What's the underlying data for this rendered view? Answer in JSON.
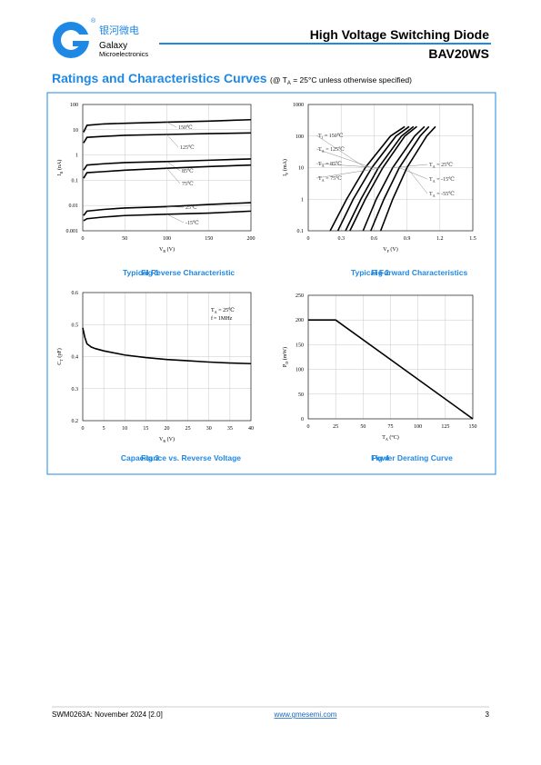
{
  "header": {
    "logo": {
      "cn": "银河微电",
      "name": "Galaxy",
      "sub": "Microelectronics",
      "reg": "®"
    },
    "title": "High Voltage Switching Diode",
    "part": "BAV20WS"
  },
  "section": {
    "title": "Ratings and Characteristics Curves",
    "note": "(@ TA = 25°C unless otherwise specified)"
  },
  "chart_data": [
    {
      "type": "line",
      "log_y": true,
      "grid": true,
      "xlabel": "VR (V)",
      "ylabel": "IR (nA)",
      "caption": {
        "label": "Fig 1",
        "text": "Typical Reverse Characteristic"
      },
      "xlim": [
        0,
        200
      ],
      "xticks": [
        0,
        50,
        100,
        150,
        200
      ],
      "ylim": [
        0.001,
        100
      ],
      "yticks": [
        0.001,
        0.01,
        0.1,
        1,
        10,
        100
      ],
      "x": [
        1,
        5,
        25,
        50,
        100,
        150,
        200
      ],
      "series": [
        {
          "name": "150℃",
          "color": "#000000",
          "values": [
            8,
            15,
            17,
            18,
            20,
            22,
            25
          ]
        },
        {
          "name": "125℃",
          "color": "#000000",
          "values": [
            3,
            5,
            5.5,
            6,
            6.5,
            7,
            7.5
          ]
        },
        {
          "name": "85℃",
          "color": "#000000",
          "values": [
            0.25,
            0.4,
            0.45,
            0.5,
            0.55,
            0.62,
            0.7
          ]
        },
        {
          "name": "75℃",
          "color": "#000000",
          "values": [
            0.12,
            0.2,
            0.22,
            0.25,
            0.3,
            0.35,
            0.4
          ]
        },
        {
          "name": "25℃",
          "color": "#000000",
          "values": [
            0.004,
            0.006,
            0.007,
            0.008,
            0.009,
            0.011,
            0.013
          ]
        },
        {
          "name": "-15℃",
          "color": "#000000",
          "values": [
            0.0025,
            0.003,
            0.0035,
            0.004,
            0.0045,
            0.005,
            0.006
          ]
        }
      ]
    },
    {
      "type": "line",
      "log_y": true,
      "grid": true,
      "xlabel": "VF (V)",
      "ylabel": "IF (mA)",
      "caption": {
        "label": "Fig 2",
        "text": "Typical Forward Characteristics"
      },
      "xlim": [
        0,
        1.5
      ],
      "xticks": [
        0,
        0.3,
        0.6,
        0.9,
        1.2,
        1.5
      ],
      "ylim": [
        0.1,
        1000
      ],
      "yticks": [
        0.1,
        1,
        10,
        100,
        1000
      ],
      "series": [
        {
          "name": "TJ = 150℃",
          "color": "#000000",
          "x": [
            0.2,
            0.35,
            0.52,
            0.75,
            0.88
          ],
          "values": [
            0.1,
            1,
            10,
            100,
            200
          ]
        },
        {
          "name": "TA = 125℃",
          "color": "#000000",
          "x": [
            0.27,
            0.41,
            0.58,
            0.8,
            0.92
          ],
          "values": [
            0.1,
            1,
            10,
            100,
            200
          ]
        },
        {
          "name": "TA = 85℃",
          "color": "#000000",
          "x": [
            0.34,
            0.48,
            0.64,
            0.85,
            0.96
          ],
          "values": [
            0.1,
            1,
            10,
            100,
            200
          ]
        },
        {
          "name": "TA = 75℃",
          "color": "#000000",
          "x": [
            0.38,
            0.52,
            0.68,
            0.88,
            0.99
          ],
          "values": [
            0.1,
            1,
            10,
            100,
            200
          ]
        },
        {
          "name": "TA = 25℃",
          "color": "#000000",
          "x": [
            0.5,
            0.62,
            0.77,
            0.97,
            1.06
          ],
          "values": [
            0.1,
            1,
            10,
            100,
            200
          ]
        },
        {
          "name": "TA = -15℃",
          "color": "#000000",
          "x": [
            0.57,
            0.69,
            0.83,
            1.02,
            1.1
          ],
          "values": [
            0.1,
            1,
            10,
            100,
            200
          ]
        },
        {
          "name": "TA = -55℃",
          "color": "#000000",
          "x": [
            0.66,
            0.77,
            0.9,
            1.08,
            1.16
          ],
          "values": [
            0.1,
            1,
            10,
            100,
            200
          ]
        }
      ]
    },
    {
      "type": "line",
      "grid": true,
      "xlabel": "VR (V)",
      "ylabel": "CT (pF)",
      "caption": {
        "label": "Fig 3",
        "text": "Capacitance vs. Reverse Voltage"
      },
      "annotations": [
        "TA = 25℃",
        "f = 1MHz"
      ],
      "xlim": [
        0,
        40
      ],
      "xticks": [
        0,
        5,
        10,
        15,
        20,
        25,
        30,
        35,
        40
      ],
      "ylim": [
        0.2,
        0.6
      ],
      "yticks": [
        0.2,
        0.3,
        0.4,
        0.5,
        0.6
      ],
      "x": [
        0,
        0.5,
        1,
        2,
        3,
        5,
        10,
        15,
        20,
        25,
        30,
        35,
        40
      ],
      "series": [
        {
          "color": "#000000",
          "values": [
            0.49,
            0.46,
            0.44,
            0.43,
            0.425,
            0.418,
            0.405,
            0.397,
            0.391,
            0.387,
            0.383,
            0.38,
            0.378
          ]
        }
      ]
    },
    {
      "type": "line",
      "grid": true,
      "xlabel": "TA (°C)",
      "ylabel": "PD (mW)",
      "caption": {
        "label": "Fig 4",
        "text": "Power Derating Curve"
      },
      "xlim": [
        0,
        150
      ],
      "xticks": [
        0,
        25,
        50,
        75,
        100,
        125,
        150
      ],
      "ylim": [
        0,
        250
      ],
      "yticks": [
        0,
        50,
        100,
        150,
        200,
        250
      ],
      "x": [
        0,
        25,
        150
      ],
      "series": [
        {
          "color": "#000000",
          "values": [
            200,
            200,
            0
          ]
        }
      ]
    }
  ],
  "footer": {
    "doc": "SWM0263A: November 2024 [2.0]",
    "url": "www.gmesemi.com",
    "page": "3"
  }
}
